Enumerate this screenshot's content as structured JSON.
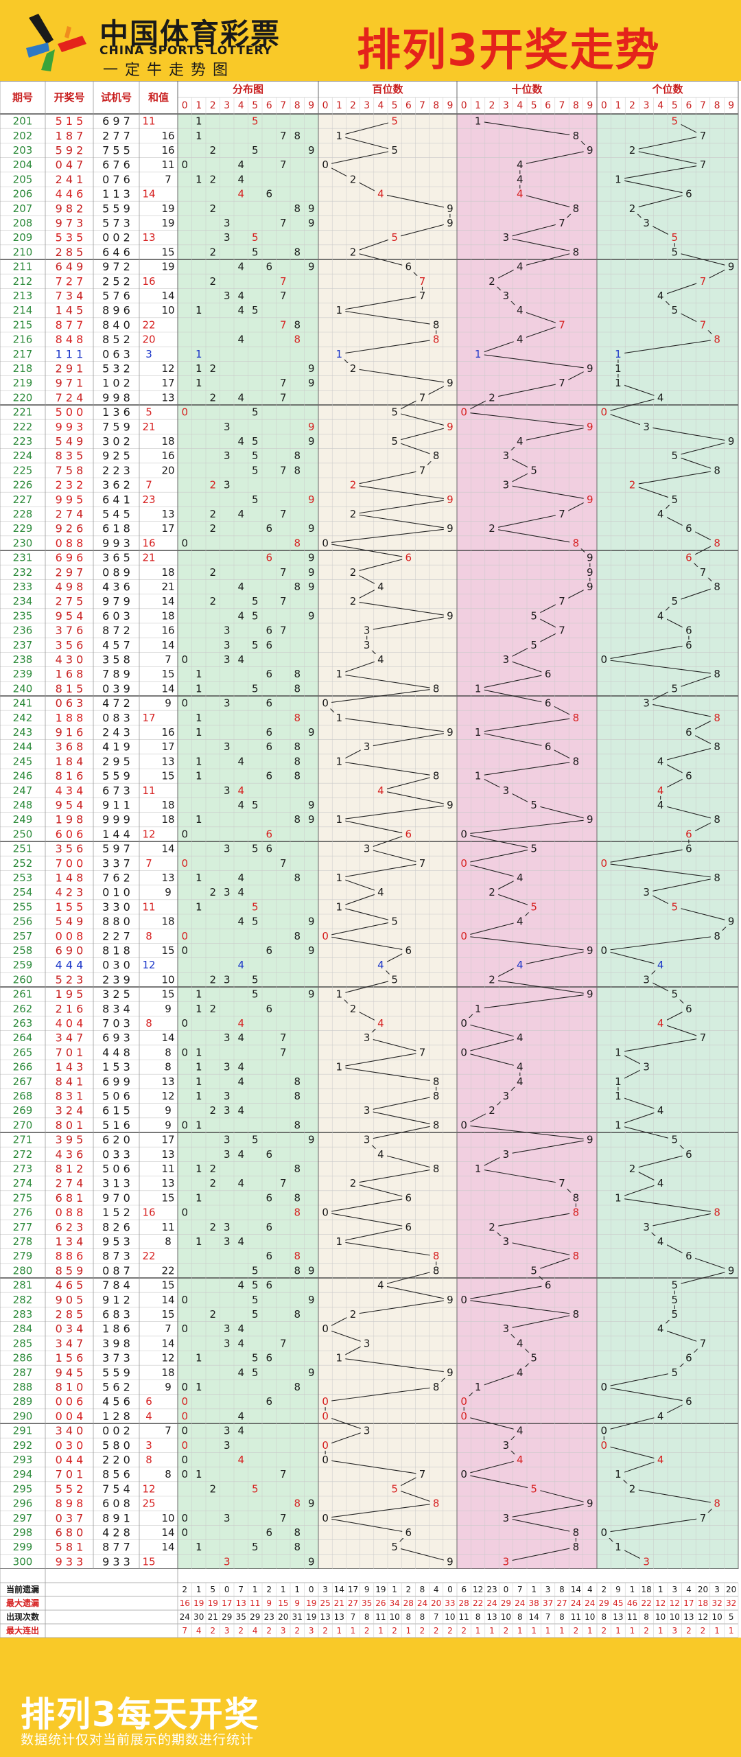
{
  "logo": {
    "cn": "中国体育彩票",
    "en": "CHINA SPORTS LOTTERY",
    "slogan": "一定牛走势图"
  },
  "page_title": "排列3开奖走势",
  "footer": {
    "title": "排列3每天开奖",
    "note": "数据统计仅对当前展示的期数进行统计"
  },
  "chart_data": {
    "type": "table",
    "headers": {
      "period": "期号",
      "draw": "开奖号",
      "trial": "试机号",
      "sum": "和值",
      "dist": "分布图",
      "hundreds": "百位数",
      "tens": "十位数",
      "ones": "个位数"
    },
    "digits": [
      "0",
      "1",
      "2",
      "3",
      "4",
      "5",
      "6",
      "7",
      "8",
      "9"
    ],
    "rows": [
      {
        "p": "201",
        "d": "515",
        "t": "697",
        "s": "11"
      },
      {
        "p": "202",
        "d": "187",
        "t": "277",
        "s": "16"
      },
      {
        "p": "203",
        "d": "592",
        "t": "755",
        "s": "16"
      },
      {
        "p": "204",
        "d": "047",
        "t": "676",
        "s": "11"
      },
      {
        "p": "205",
        "d": "241",
        "t": "076",
        "s": "7"
      },
      {
        "p": "206",
        "d": "446",
        "t": "113",
        "s": "14"
      },
      {
        "p": "207",
        "d": "982",
        "t": "559",
        "s": "19"
      },
      {
        "p": "208",
        "d": "973",
        "t": "573",
        "s": "19"
      },
      {
        "p": "209",
        "d": "535",
        "t": "002",
        "s": "13"
      },
      {
        "p": "210",
        "d": "285",
        "t": "646",
        "s": "15"
      },
      {
        "p": "211",
        "d": "649",
        "t": "972",
        "s": "19"
      },
      {
        "p": "212",
        "d": "727",
        "t": "252",
        "s": "16"
      },
      {
        "p": "213",
        "d": "734",
        "t": "576",
        "s": "14"
      },
      {
        "p": "214",
        "d": "145",
        "t": "896",
        "s": "10"
      },
      {
        "p": "215",
        "d": "877",
        "t": "840",
        "s": "22"
      },
      {
        "p": "216",
        "d": "848",
        "t": "852",
        "s": "20"
      },
      {
        "p": "217",
        "d": "111",
        "t": "063",
        "s": "3"
      },
      {
        "p": "218",
        "d": "291",
        "t": "532",
        "s": "12"
      },
      {
        "p": "219",
        "d": "971",
        "t": "102",
        "s": "17"
      },
      {
        "p": "220",
        "d": "724",
        "t": "998",
        "s": "13"
      },
      {
        "p": "221",
        "d": "500",
        "t": "136",
        "s": "5"
      },
      {
        "p": "222",
        "d": "993",
        "t": "759",
        "s": "21"
      },
      {
        "p": "223",
        "d": "549",
        "t": "302",
        "s": "18"
      },
      {
        "p": "224",
        "d": "835",
        "t": "925",
        "s": "16"
      },
      {
        "p": "225",
        "d": "758",
        "t": "223",
        "s": "20"
      },
      {
        "p": "226",
        "d": "232",
        "t": "362",
        "s": "7"
      },
      {
        "p": "227",
        "d": "995",
        "t": "641",
        "s": "23"
      },
      {
        "p": "228",
        "d": "274",
        "t": "545",
        "s": "13"
      },
      {
        "p": "229",
        "d": "926",
        "t": "618",
        "s": "17"
      },
      {
        "p": "230",
        "d": "088",
        "t": "993",
        "s": "16"
      },
      {
        "p": "231",
        "d": "696",
        "t": "365",
        "s": "21"
      },
      {
        "p": "232",
        "d": "297",
        "t": "089",
        "s": "18"
      },
      {
        "p": "233",
        "d": "498",
        "t": "436",
        "s": "21"
      },
      {
        "p": "234",
        "d": "275",
        "t": "979",
        "s": "14"
      },
      {
        "p": "235",
        "d": "954",
        "t": "603",
        "s": "18"
      },
      {
        "p": "236",
        "d": "376",
        "t": "872",
        "s": "16"
      },
      {
        "p": "237",
        "d": "356",
        "t": "457",
        "s": "14"
      },
      {
        "p": "238",
        "d": "430",
        "t": "358",
        "s": "7"
      },
      {
        "p": "239",
        "d": "168",
        "t": "789",
        "s": "15"
      },
      {
        "p": "240",
        "d": "815",
        "t": "039",
        "s": "14"
      },
      {
        "p": "241",
        "d": "063",
        "t": "472",
        "s": "9"
      },
      {
        "p": "242",
        "d": "188",
        "t": "083",
        "s": "17"
      },
      {
        "p": "243",
        "d": "916",
        "t": "243",
        "s": "16"
      },
      {
        "p": "244",
        "d": "368",
        "t": "419",
        "s": "17"
      },
      {
        "p": "245",
        "d": "184",
        "t": "295",
        "s": "13"
      },
      {
        "p": "246",
        "d": "816",
        "t": "559",
        "s": "15"
      },
      {
        "p": "247",
        "d": "434",
        "t": "673",
        "s": "11"
      },
      {
        "p": "248",
        "d": "954",
        "t": "911",
        "s": "18"
      },
      {
        "p": "249",
        "d": "198",
        "t": "999",
        "s": "18"
      },
      {
        "p": "250",
        "d": "606",
        "t": "144",
        "s": "12"
      },
      {
        "p": "251",
        "d": "356",
        "t": "597",
        "s": "14"
      },
      {
        "p": "252",
        "d": "700",
        "t": "337",
        "s": "7"
      },
      {
        "p": "253",
        "d": "148",
        "t": "762",
        "s": "13"
      },
      {
        "p": "254",
        "d": "423",
        "t": "010",
        "s": "9"
      },
      {
        "p": "255",
        "d": "155",
        "t": "330",
        "s": "11"
      },
      {
        "p": "256",
        "d": "549",
        "t": "880",
        "s": "18"
      },
      {
        "p": "257",
        "d": "008",
        "t": "227",
        "s": "8"
      },
      {
        "p": "258",
        "d": "690",
        "t": "818",
        "s": "15"
      },
      {
        "p": "259",
        "d": "444",
        "t": "030",
        "s": "12"
      },
      {
        "p": "260",
        "d": "523",
        "t": "239",
        "s": "10"
      },
      {
        "p": "261",
        "d": "195",
        "t": "325",
        "s": "15"
      },
      {
        "p": "262",
        "d": "216",
        "t": "834",
        "s": "9"
      },
      {
        "p": "263",
        "d": "404",
        "t": "703",
        "s": "8"
      },
      {
        "p": "264",
        "d": "347",
        "t": "693",
        "s": "14"
      },
      {
        "p": "265",
        "d": "701",
        "t": "448",
        "s": "8"
      },
      {
        "p": "266",
        "d": "143",
        "t": "153",
        "s": "8"
      },
      {
        "p": "267",
        "d": "841",
        "t": "699",
        "s": "13"
      },
      {
        "p": "268",
        "d": "831",
        "t": "506",
        "s": "12"
      },
      {
        "p": "269",
        "d": "324",
        "t": "615",
        "s": "9"
      },
      {
        "p": "270",
        "d": "801",
        "t": "516",
        "s": "9"
      },
      {
        "p": "271",
        "d": "395",
        "t": "620",
        "s": "17"
      },
      {
        "p": "272",
        "d": "436",
        "t": "033",
        "s": "13"
      },
      {
        "p": "273",
        "d": "812",
        "t": "506",
        "s": "11"
      },
      {
        "p": "274",
        "d": "274",
        "t": "313",
        "s": "13"
      },
      {
        "p": "275",
        "d": "681",
        "t": "970",
        "s": "15"
      },
      {
        "p": "276",
        "d": "088",
        "t": "152",
        "s": "16"
      },
      {
        "p": "277",
        "d": "623",
        "t": "826",
        "s": "11"
      },
      {
        "p": "278",
        "d": "134",
        "t": "953",
        "s": "8"
      },
      {
        "p": "279",
        "d": "886",
        "t": "873",
        "s": "22"
      },
      {
        "p": "280",
        "d": "859",
        "t": "087",
        "s": "22"
      },
      {
        "p": "281",
        "d": "465",
        "t": "784",
        "s": "15"
      },
      {
        "p": "282",
        "d": "905",
        "t": "912",
        "s": "14"
      },
      {
        "p": "283",
        "d": "285",
        "t": "683",
        "s": "15"
      },
      {
        "p": "284",
        "d": "034",
        "t": "186",
        "s": "7"
      },
      {
        "p": "285",
        "d": "347",
        "t": "398",
        "s": "14"
      },
      {
        "p": "286",
        "d": "156",
        "t": "373",
        "s": "12"
      },
      {
        "p": "287",
        "d": "945",
        "t": "559",
        "s": "18"
      },
      {
        "p": "288",
        "d": "810",
        "t": "562",
        "s": "9"
      },
      {
        "p": "289",
        "d": "006",
        "t": "456",
        "s": "6"
      },
      {
        "p": "290",
        "d": "004",
        "t": "128",
        "s": "4"
      },
      {
        "p": "291",
        "d": "340",
        "t": "002",
        "s": "7"
      },
      {
        "p": "292",
        "d": "030",
        "t": "580",
        "s": "3"
      },
      {
        "p": "293",
        "d": "044",
        "t": "220",
        "s": "8"
      },
      {
        "p": "294",
        "d": "701",
        "t": "856",
        "s": "8"
      },
      {
        "p": "295",
        "d": "552",
        "t": "754",
        "s": "12"
      },
      {
        "p": "296",
        "d": "898",
        "t": "608",
        "s": "25"
      },
      {
        "p": "297",
        "d": "037",
        "t": "891",
        "s": "10"
      },
      {
        "p": "298",
        "d": "680",
        "t": "428",
        "s": "14"
      },
      {
        "p": "299",
        "d": "581",
        "t": "877",
        "s": "14"
      },
      {
        "p": "300",
        "d": "933",
        "t": "933",
        "s": "15"
      }
    ],
    "stats": {
      "labels": [
        "当前遗漏",
        "最大遗漏",
        "出现次数",
        "最大连出"
      ],
      "dist": [
        [
          2,
          1,
          5,
          0,
          7,
          1,
          2,
          1,
          1,
          0
        ],
        [
          16,
          19,
          19,
          17,
          13,
          11,
          9,
          15,
          9,
          19
        ],
        [
          24,
          30,
          21,
          29,
          35,
          29,
          23,
          20,
          31,
          19
        ],
        [
          7,
          4,
          2,
          3,
          2,
          4,
          2,
          3,
          2,
          3
        ]
      ],
      "hundreds": [
        [
          3,
          14,
          17,
          9,
          19,
          1,
          2,
          8,
          4,
          0
        ],
        [
          25,
          21,
          27,
          35,
          26,
          34,
          28,
          24,
          20,
          33
        ],
        [
          13,
          13,
          7,
          8,
          11,
          10,
          8,
          8,
          7,
          10
        ],
        [
          2,
          1,
          1,
          2,
          1,
          2,
          1,
          2,
          2,
          2
        ]
      ],
      "tens": [
        [
          6,
          12,
          23,
          0,
          7,
          1,
          3,
          8,
          14,
          4
        ],
        [
          28,
          22,
          24,
          29,
          24,
          38,
          37,
          27,
          24,
          24
        ],
        [
          11,
          8,
          13,
          10,
          8,
          14,
          7,
          8,
          11,
          10
        ],
        [
          2,
          1,
          1,
          2,
          1,
          1,
          1,
          1,
          2,
          1
        ]
      ],
      "ones": [
        [
          2,
          9,
          1,
          18,
          1,
          3,
          4,
          20,
          3,
          20
        ],
        [
          29,
          45,
          46,
          22,
          12,
          12,
          17,
          18,
          32,
          32
        ],
        [
          8,
          13,
          11,
          8,
          10,
          10,
          13,
          12,
          10,
          5
        ],
        [
          2,
          1,
          1,
          2,
          1,
          3,
          2,
          2,
          1,
          1
        ]
      ]
    }
  }
}
